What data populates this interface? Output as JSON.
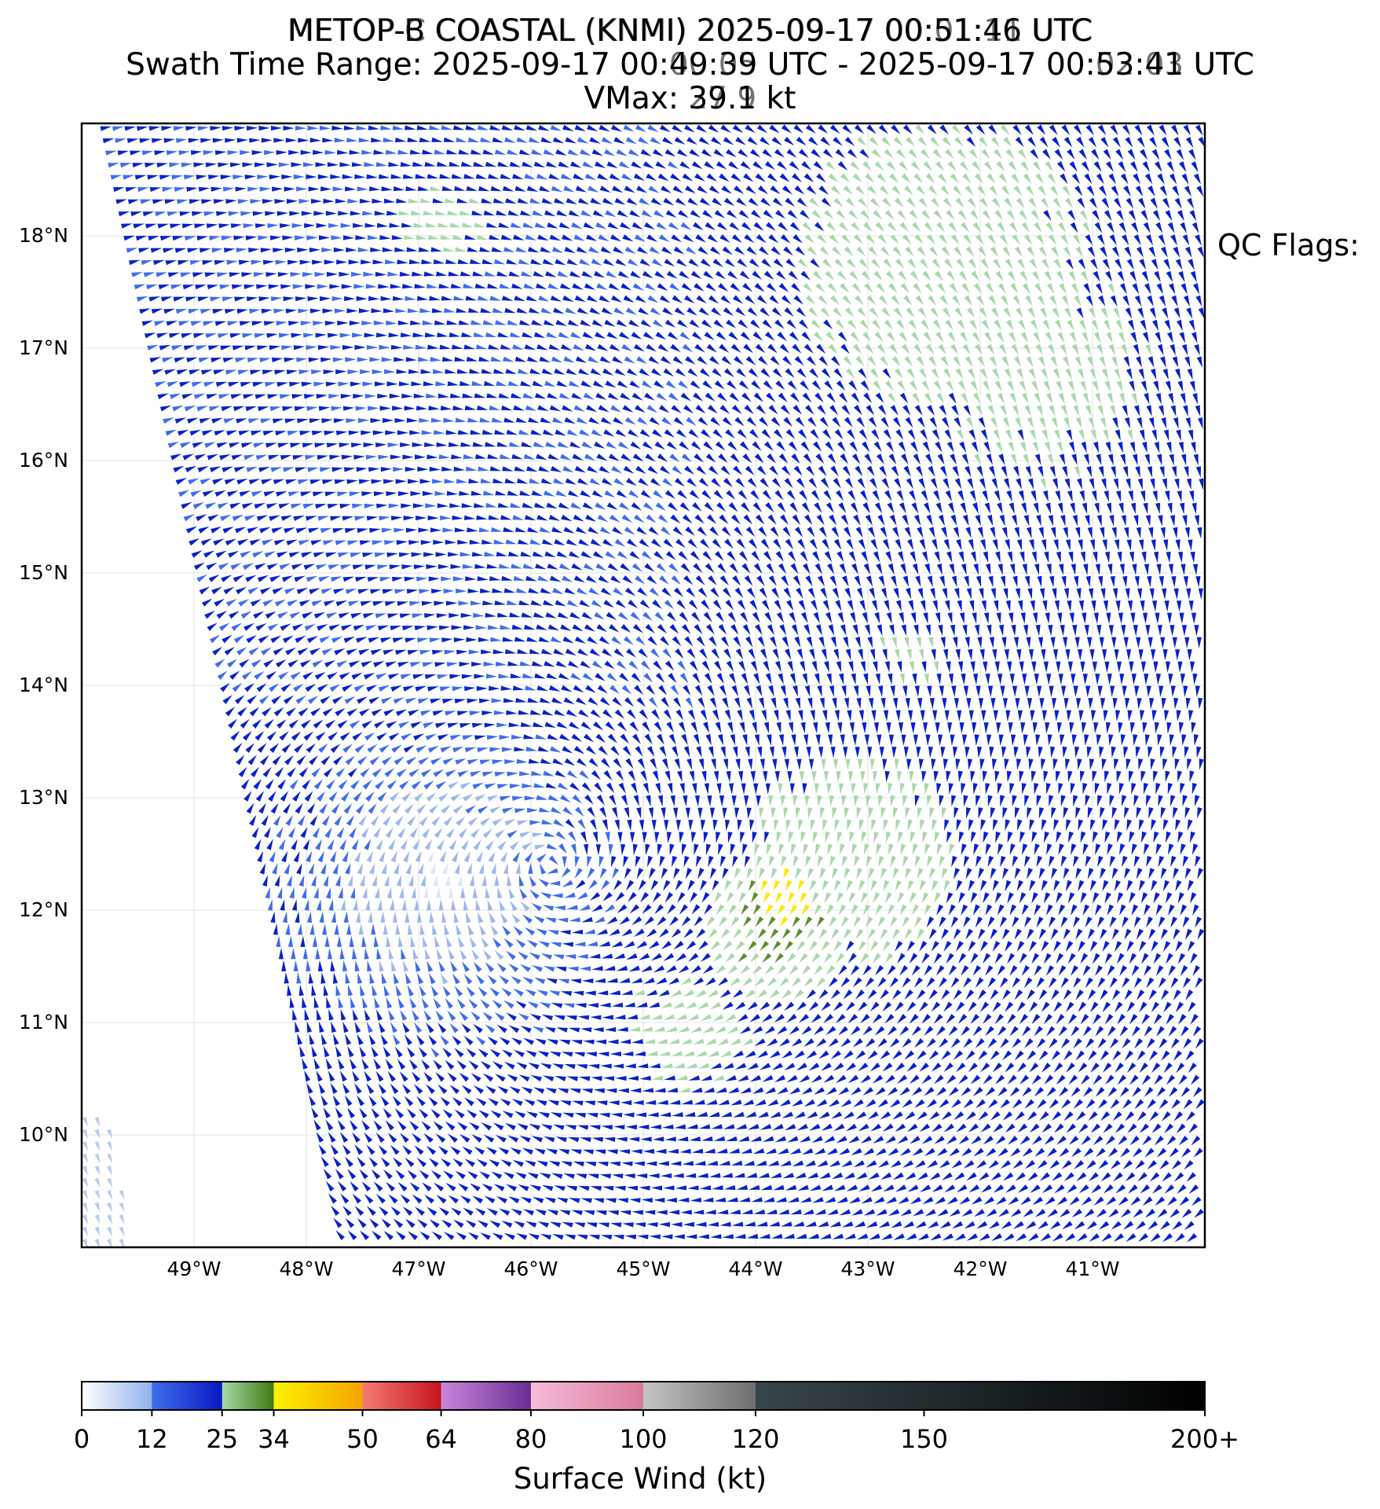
{
  "title": {
    "line1": "METOP-B COASTAL (KNMI) 2025-09-17 00:51:46 UTC",
    "line1_overprint": "METOP-C COASTAL (KNMI) 2025-09-17 00:01:11 UTC",
    "line2": "Swath Time Range: 2025-09-17 00:49:39 UTC - 2025-09-17 00:53:41 UTC",
    "line2_overprint": "Swath Time Range: 2025-09-17 00:00:05 UTC - 2025-09-17 00:02:03 UTC",
    "line3": "VMax: 39.1 kt",
    "line3_overprint": "VMax: 27.9 kt"
  },
  "qc_flags_label": "QC Flags:",
  "map": {
    "lat_labels": [
      "18°N",
      "17°N",
      "16°N",
      "15°N",
      "14°N",
      "13°N",
      "12°N",
      "11°N",
      "10°N"
    ],
    "lat_values": [
      18,
      17,
      16,
      15,
      14,
      13,
      12,
      11,
      10
    ],
    "lon_labels": [
      "49°W",
      "48°W",
      "47°W",
      "46°W",
      "45°W",
      "44°W",
      "43°W",
      "42°W",
      "41°W"
    ],
    "lon_values": [
      -49,
      -48,
      -47,
      -46,
      -45,
      -44,
      -43,
      -42,
      -41
    ],
    "lat_range": [
      9.0,
      19.0
    ],
    "lon_range": [
      -50.0,
      -40.0
    ],
    "grid": true
  },
  "colorbar": {
    "title": "Surface Wind (kt)",
    "ticks": [
      "0",
      "12",
      "25",
      "34",
      "50",
      "64",
      "80",
      "100",
      "120",
      "150",
      "200+"
    ],
    "segments": [
      {
        "from": 0,
        "to": 12,
        "c1": "#ffffff",
        "c2": "#8fb1ec"
      },
      {
        "from": 12,
        "to": 25,
        "c1": "#3f6ee8",
        "c2": "#0718c4"
      },
      {
        "from": 25,
        "to": 34,
        "c1": "#a7d8a8",
        "c2": "#3d7a10"
      },
      {
        "from": 34,
        "to": 50,
        "c1": "#fff200",
        "c2": "#f5a300"
      },
      {
        "from": 50,
        "to": 64,
        "c1": "#f47a72",
        "c2": "#c8141b"
      },
      {
        "from": 64,
        "to": 80,
        "c1": "#c886db",
        "c2": "#6a2d94"
      },
      {
        "from": 80,
        "to": 100,
        "c1": "#f7bcd9",
        "c2": "#d87a9c"
      },
      {
        "from": 100,
        "to": 120,
        "c1": "#c4c4c4",
        "c2": "#6e6e6e"
      },
      {
        "from": 120,
        "to": 200,
        "c1": "#37474c",
        "c2": "#000000"
      }
    ]
  }
}
